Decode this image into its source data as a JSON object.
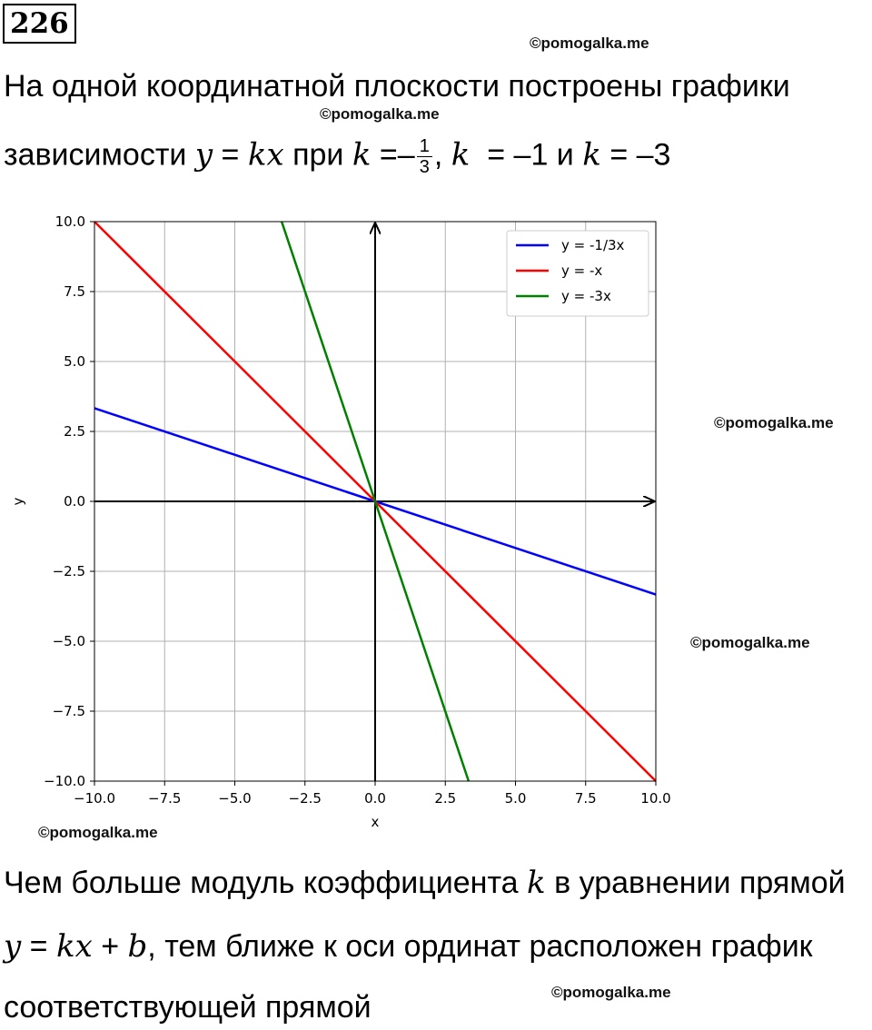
{
  "problem_number": "226",
  "watermark": "©pomogalka.me",
  "intro": {
    "line1": "На одной координатной плоскости построены графики",
    "line2_a": "зависимости",
    "y": "y",
    "eq": "=",
    "kx": "kx",
    "pri": "при",
    "k": "k",
    "minus": "–",
    "frac_num": "1",
    "frac_den": "3",
    "comma": ",",
    "val2": "= –1 и",
    "val3": "= –3"
  },
  "conclusion": {
    "line1_a": "Чем больше модуль коэффициента",
    "k": "k",
    "line1_b": "в уравнении прямой",
    "y": "y",
    "eq": "=",
    "kx": "kx",
    "plus": "+",
    "b": "b",
    "line2_b": ", тем ближе к оси ординат расположен график",
    "line3": "соответствующей прямой"
  },
  "chart_data": {
    "type": "line",
    "xlabel": "x",
    "ylabel": "y",
    "xlim": [
      -10,
      10
    ],
    "ylim": [
      -10,
      10
    ],
    "x_ticks": [
      -10,
      -7.5,
      -5,
      -2.5,
      0,
      2.5,
      5,
      7.5,
      10
    ],
    "y_ticks": [
      -10,
      -7.5,
      -5,
      -2.5,
      0,
      2.5,
      5,
      7.5,
      10
    ],
    "x_tick_labels": [
      "−10.0",
      "−7.5",
      "−5.0",
      "−2.5",
      "0.0",
      "2.5",
      "5.0",
      "7.5",
      "10.0"
    ],
    "y_tick_labels": [
      "−10.0",
      "−7.5",
      "−5.0",
      "−2.5",
      "0.0",
      "2.5",
      "5.0",
      "7.5",
      "10.0"
    ],
    "grid": true,
    "legend_position": "top-right",
    "series": [
      {
        "name": "y = -1/3x",
        "color": "#0000ff",
        "x": [
          -10,
          10
        ],
        "y": [
          3.33,
          -3.33
        ]
      },
      {
        "name": "y = -x",
        "color": "#ff0000",
        "x": [
          -10,
          10
        ],
        "y": [
          10,
          -10
        ]
      },
      {
        "name": "y = -3x",
        "color": "#008000",
        "x": [
          -3.33,
          3.33
        ],
        "y": [
          10,
          -10
        ]
      }
    ]
  }
}
